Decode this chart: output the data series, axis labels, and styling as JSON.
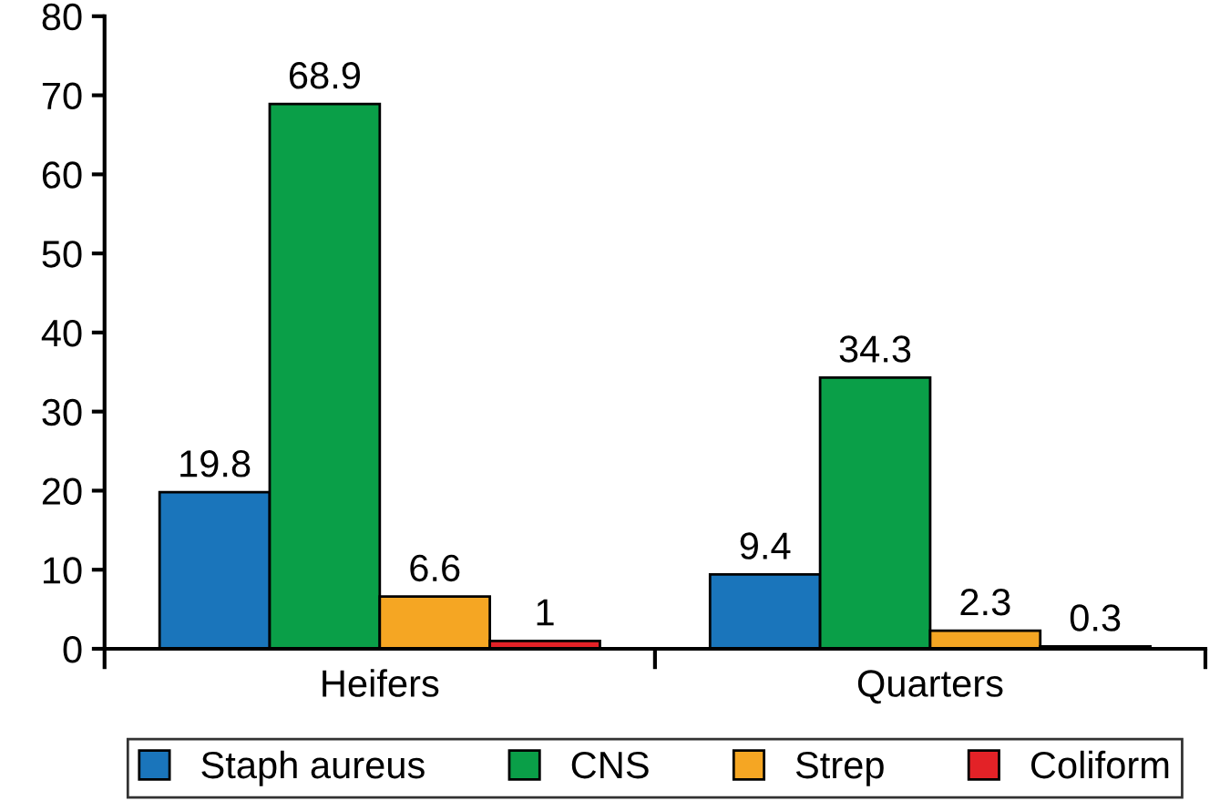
{
  "chart_data": {
    "type": "bar",
    "categories": [
      "Heifers",
      "Quarters"
    ],
    "series": [
      {
        "name": "Staph aureus",
        "color": "#1a75bb",
        "values": [
          19.8,
          9.4
        ]
      },
      {
        "name": "CNS",
        "color": "#0a9f48",
        "values": [
          68.9,
          34.3
        ]
      },
      {
        "name": "Strep",
        "color": "#f5a623",
        "values": [
          6.6,
          2.3
        ]
      },
      {
        "name": "Coliform",
        "color": "#e32227",
        "values": [
          1,
          0.3
        ]
      }
    ],
    "ylim": [
      0,
      80
    ],
    "yticks": [
      0,
      10,
      20,
      30,
      40,
      50,
      60,
      70,
      80
    ],
    "data_labels": true,
    "legend": "bottom",
    "grid": false
  }
}
